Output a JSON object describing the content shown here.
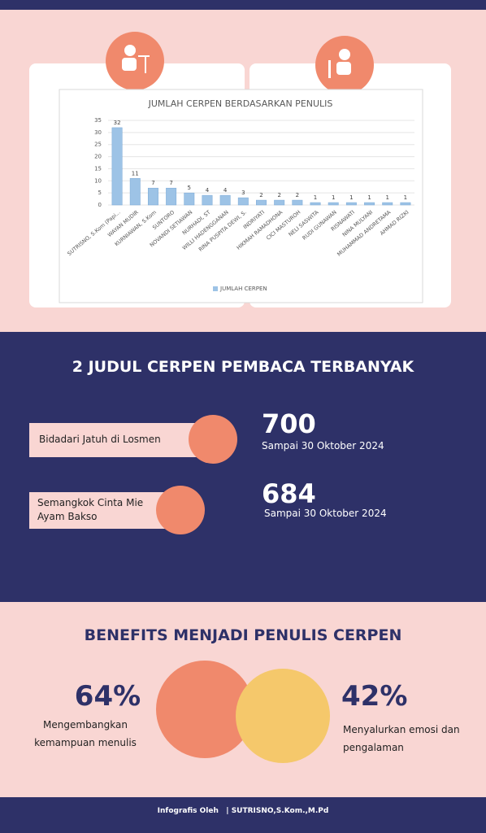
{
  "chart_data": {
    "type": "bar",
    "title": "JUMLAH CERPEN BERDASARKAN PENULIS",
    "categories": [
      "SUTRISNO, S.Kom (Papi...",
      "WAYAN MUDIR",
      "KURNIAWAN, S.Kom",
      "SUNTORO",
      "NOVANDI SETIAWAN",
      "NURHADI, ST",
      "WILLI HADENGGANAN",
      "RINA PUSPITA DEWI, S.",
      "INDRIYATI",
      "HIKMAH RAMADHONA",
      "CICI MASTUROH",
      "NELI SASWITA",
      "RUDI GUNAWAN",
      "RISNAWATI",
      "NINA MULYANI",
      "MUHAMMAD ANDRETAMA",
      "AHMAD RIZKI"
    ],
    "series": [
      {
        "name": "JUMLAH CERPEN",
        "color": "#9dc3e6",
        "values": [
          32,
          11,
          7,
          7,
          5,
          4,
          4,
          3,
          2,
          2,
          2,
          1,
          1,
          1,
          1,
          1,
          1
        ]
      }
    ],
    "ylim": [
      0,
      35
    ],
    "yticks": [
      0,
      5,
      10,
      15,
      20,
      25,
      30,
      35
    ],
    "grid": true,
    "legend": "bottom"
  },
  "top_reads": {
    "title": "2 JUDUL CERPEN PEMBACA TERBANYAK",
    "items": [
      {
        "title": "Bidadari Jatuh di Losmen",
        "count": "700",
        "caption": "Sampai 30 Oktober 2024"
      },
      {
        "title": "Semangkok Cinta Mie Ayam Bakso",
        "count": "684",
        "caption": "Sampai 30 Oktober 2024"
      }
    ]
  },
  "benefits": {
    "title": "BENEFITS MENJADI PENULIS CERPEN",
    "items": [
      {
        "percent": "64%",
        "text": "Mengembangkan kemampuan menulis"
      },
      {
        "percent": "42%",
        "text": "Menyalurkan emosi dan pengalaman"
      }
    ]
  },
  "footer": {
    "label": "Infografis Oleh",
    "author": "| SUTRISNO,S.Kom.,M.Pd"
  }
}
